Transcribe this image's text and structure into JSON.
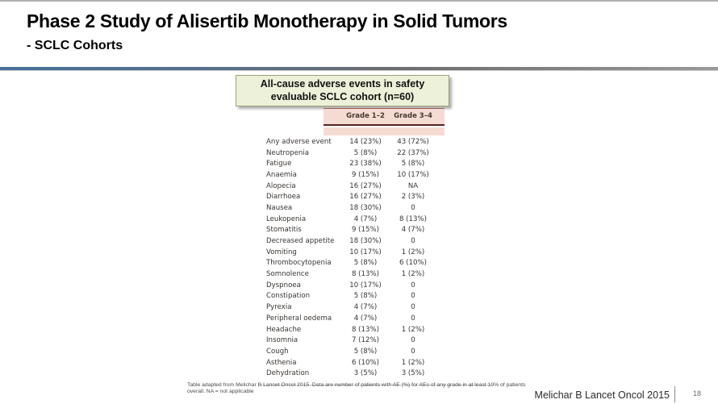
{
  "slide": {
    "title": "Phase 2 Study of Alisertib Monotherapy in Solid Tumors",
    "subtitle": "- SCLC Cohorts",
    "citation": "Melichar B Lancet Oncol 2015",
    "page_number": "18"
  },
  "callout": {
    "text": "All-cause adverse events in safety evaluable SCLC cohort (n=60)",
    "bg_color": "#eef1d9",
    "border_color": "#9ba176"
  },
  "table": {
    "columns": [
      "Grade 1–2",
      "Grade 3–4"
    ],
    "header_bg_color": "#f5dcd2",
    "header_rule_color": "#54251f",
    "rows": [
      {
        "label": "Any adverse event",
        "grade12": "14 (23%)",
        "grade34": "43 (72%)"
      },
      {
        "label": "Neutropenia",
        "grade12": "5 (8%)",
        "grade34": "22 (37%)"
      },
      {
        "label": "Fatigue",
        "grade12": "23 (38%)",
        "grade34": "5 (8%)"
      },
      {
        "label": "Anaemia",
        "grade12": "9 (15%)",
        "grade34": "10 (17%)"
      },
      {
        "label": "Alopecia",
        "grade12": "16 (27%)",
        "grade34": "NA"
      },
      {
        "label": "Diarrhoea",
        "grade12": "16 (27%)",
        "grade34": "2 (3%)"
      },
      {
        "label": "Nausea",
        "grade12": "18 (30%)",
        "grade34": "0"
      },
      {
        "label": "Leukopenia",
        "grade12": "4 (7%)",
        "grade34": "8 (13%)"
      },
      {
        "label": "Stomatitis",
        "grade12": "9 (15%)",
        "grade34": "4 (7%)"
      },
      {
        "label": "Decreased appetite",
        "grade12": "18 (30%)",
        "grade34": "0"
      },
      {
        "label": "Vomiting",
        "grade12": "10 (17%)",
        "grade34": "1 (2%)"
      },
      {
        "label": "Thrombocytopenia",
        "grade12": "5 (8%)",
        "grade34": "6 (10%)"
      },
      {
        "label": "Somnolence",
        "grade12": "8 (13%)",
        "grade34": "1 (2%)"
      },
      {
        "label": "Dyspnoea",
        "grade12": "10 (17%)",
        "grade34": "0"
      },
      {
        "label": "Constipation",
        "grade12": "5 (8%)",
        "grade34": "0"
      },
      {
        "label": "Pyrexia",
        "grade12": "4 (7%)",
        "grade34": "0"
      },
      {
        "label": "Peripheral oedema",
        "grade12": "4 (7%)",
        "grade34": "0"
      },
      {
        "label": "Headache",
        "grade12": "8 (13%)",
        "grade34": "1 (2%)"
      },
      {
        "label": "Insomnia",
        "grade12": "7 (12%)",
        "grade34": "0"
      },
      {
        "label": "Cough",
        "grade12": "5 (8%)",
        "grade34": "0"
      },
      {
        "label": "Asthenia",
        "grade12": "6 (10%)",
        "grade34": "1 (2%)"
      },
      {
        "label": "Dehydration",
        "grade12": "3 (5%)",
        "grade34": "3 (5%)"
      }
    ],
    "footnote": "Table adapted from Melichar B Lancet Oncol 2015. Data are number of patients with AE (%) for AEs of any grade in at least 10% of patients overall. NA = not applicable"
  }
}
